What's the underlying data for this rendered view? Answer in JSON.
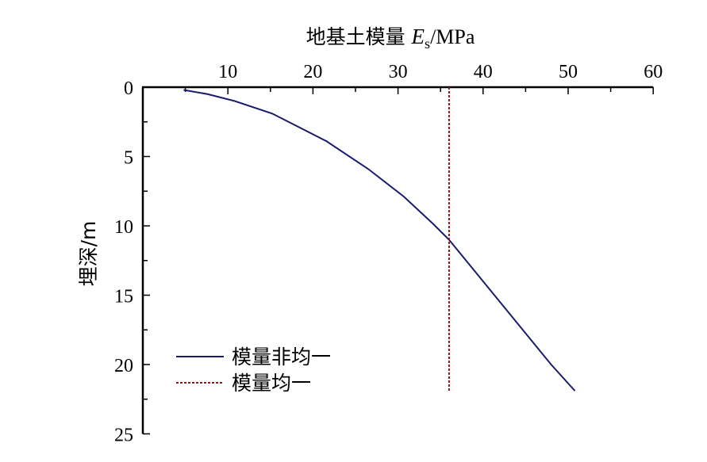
{
  "chart_data": {
    "type": "line",
    "title": "",
    "xlabel": "地基土模量 Es/MPa",
    "xlabel_parts": {
      "prefix": "地基土模量 ",
      "var": "E",
      "sub": "s",
      "unit": "/MPa"
    },
    "ylabel": "埋深/m",
    "xlim": [
      0,
      60
    ],
    "ylim": [
      0,
      25
    ],
    "y_inverted": true,
    "x_axis_position": "top",
    "x_ticks": [
      10,
      20,
      30,
      40,
      50,
      60
    ],
    "x_tick_labels": [
      "10",
      "20",
      "30",
      "40",
      "50",
      "60"
    ],
    "y_ticks": [
      0,
      5,
      10,
      15,
      20,
      25
    ],
    "y_tick_labels": [
      "0",
      "5",
      "10",
      "15",
      "20",
      "25"
    ],
    "grid": false,
    "legend_position": "bottom-left",
    "series": [
      {
        "name": "模量非均一",
        "style": "solid",
        "color": "#1a1a6e",
        "x": [
          4.8,
          7.6,
          10.8,
          15.2,
          21.6,
          26.5,
          30.7,
          34.2,
          36.0,
          40.0,
          44.0,
          48.0,
          50.8
        ],
        "y": [
          0.2,
          0.5,
          1.0,
          1.9,
          3.9,
          5.9,
          7.9,
          9.9,
          11.0,
          14.0,
          17.0,
          20.0,
          21.9
        ]
      },
      {
        "name": "模量均一",
        "style": "dotted",
        "color": "#8b1a1a",
        "x": [
          36.0,
          36.0
        ],
        "y": [
          0,
          22
        ]
      }
    ]
  }
}
